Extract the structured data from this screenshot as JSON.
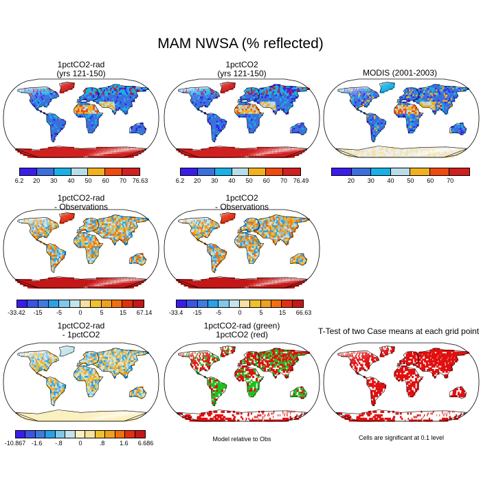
{
  "title": "MAM NWSA (% reflected)",
  "panels": [
    {
      "id": "p1",
      "title1": "1pctCO2-rad",
      "title2": "(yrs 121-150)"
    },
    {
      "id": "p2",
      "title1": "1pctCO2",
      "title2": "(yrs 121-150)"
    },
    {
      "id": "p3",
      "title1": "MODIS (2001-2003)",
      "title2": ""
    },
    {
      "id": "p4",
      "title1": "1pctCO2-rad",
      "title2": "- Observations"
    },
    {
      "id": "p5",
      "title1": "1pctCO2",
      "title2": "- Observations"
    },
    {
      "id": "p6",
      "title1": "1pctCO2-rad",
      "title2": "- 1pctCO2"
    },
    {
      "id": "p7",
      "title1": "1pctCO2-rad (green)",
      "title2": "1pctCO2 (red)"
    },
    {
      "id": "p8",
      "title1": "T-Test of two Case means at each grid point",
      "title2": ""
    }
  ],
  "colorbars": {
    "abs": {
      "colors": [
        "#3a1ee8",
        "#3c6fdc",
        "#1ab0e6",
        "#b8dde8",
        "#f0b020",
        "#ef4a10",
        "#d02020"
      ],
      "ticks1": [
        "6.2",
        "20",
        "30",
        "40",
        "50",
        "60",
        "70",
        "76.63"
      ],
      "ticks2": [
        "6.2",
        "20",
        "30",
        "40",
        "50",
        "60",
        "70",
        "76.49"
      ],
      "ticks3": [
        "20",
        "30",
        "40",
        "50",
        "60",
        "70"
      ]
    },
    "diff": {
      "colors": [
        "#3a1ee8",
        "#3c55e0",
        "#3d7de0",
        "#2aa0e8",
        "#80c8ea",
        "#c4e4ec",
        "#f8e0a0",
        "#f0c030",
        "#f0a020",
        "#f07010",
        "#e03010",
        "#c41818"
      ],
      "ticks4": [
        "-33.42",
        "-15",
        "-5",
        "0",
        "5",
        "15",
        "67.14"
      ],
      "ticks5": [
        "-33.4",
        "-15",
        "-5",
        "0",
        "5",
        "15",
        "66.63"
      ]
    },
    "diff2": {
      "colors": [
        "#3a1ee8",
        "#3c55e0",
        "#3d7de0",
        "#2aa0e8",
        "#80c8ea",
        "#c4e4ec",
        "#fbf0c0",
        "#f8e0a0",
        "#f0c030",
        "#f0a020",
        "#f07010",
        "#e03010",
        "#c41818"
      ],
      "ticks6": [
        "-10.867",
        "-1.6",
        "-.8",
        "0",
        ".8",
        "1.6",
        "6.686"
      ]
    }
  },
  "notes": {
    "model_rel": "Model relative to Obs",
    "significant": "Cells are significant at 0.1 level"
  }
}
